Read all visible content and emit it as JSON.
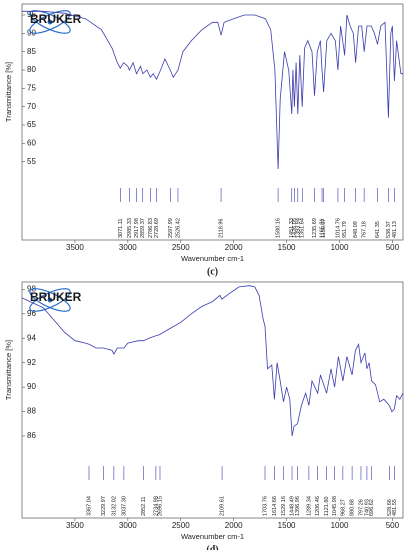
{
  "chart_data": [
    {
      "type": "line",
      "logo": "BRUKER",
      "caption": "(c)",
      "y_label": "Transmittance [%]",
      "x_label": "Wavenumber cm-1",
      "xlim": [
        4000,
        400
      ],
      "ylim": [
        50,
        98
      ],
      "xticks": [
        3500,
        3000,
        2500,
        2000,
        1500,
        1000,
        500
      ],
      "yticks": [
        55,
        60,
        65,
        70,
        75,
        80,
        85,
        90,
        95
      ],
      "color": "#3b3bb0",
      "x": [
        4000,
        3800,
        3600,
        3400,
        3250,
        3150,
        3100,
        3071,
        3040,
        3000,
        2985,
        2950,
        2918,
        2880,
        2859,
        2820,
        2787,
        2760,
        2729,
        2690,
        2650,
        2600,
        2570,
        2526,
        2480,
        2400,
        2300,
        2200,
        2150,
        2119,
        2090,
        2000,
        1900,
        1800,
        1700,
        1650,
        1610,
        1580,
        1560,
        1520,
        1480,
        1451,
        1440,
        1426,
        1410,
        1394,
        1375,
        1352,
        1330,
        1300,
        1260,
        1236,
        1210,
        1180,
        1165,
        1150,
        1120,
        1080,
        1040,
        1015,
        990,
        960,
        952,
        930,
        900,
        870,
        848,
        820,
        790,
        767,
        740,
        700,
        670,
        641,
        610,
        570,
        538,
        515,
        500,
        481,
        460,
        420,
        400
      ],
      "values": [
        96,
        96,
        95.5,
        94,
        91,
        86,
        82,
        80.5,
        82,
        81,
        80,
        82,
        79,
        81,
        79,
        80,
        78,
        79,
        77.5,
        80,
        83,
        80,
        78,
        80,
        85,
        88,
        91,
        93,
        93,
        89.5,
        93,
        94,
        95,
        95,
        94,
        91,
        80,
        53,
        72,
        85,
        80,
        68,
        80,
        70,
        82,
        68,
        84,
        70,
        86,
        88,
        85,
        73,
        85,
        88,
        80,
        74,
        88,
        90,
        88,
        80,
        92,
        86,
        84,
        95,
        92,
        90,
        82,
        92,
        92,
        85,
        92,
        92,
        90,
        87,
        92,
        93,
        67,
        90,
        92,
        77,
        88,
        79,
        79
      ],
      "peaks": [
        3071.11,
        2985.33,
        2917.98,
        2859.37,
        2786.83,
        2728.69,
        2597.99,
        2526.42,
        2118.96,
        1580.16,
        1451.33,
        1426.05,
        1393.94,
        1351.64,
        1235.69,
        1165.01,
        1150.07,
        1014.76,
        951.79,
        848.09,
        767.18,
        641.35,
        538.37,
        481.13
      ]
    },
    {
      "type": "line",
      "logo": "BRUKER",
      "caption": "(d)",
      "y_label": "Transmittance [%]",
      "x_label": "Wavenumber cm-1",
      "xlim": [
        4000,
        400
      ],
      "ylim": [
        84.2,
        98.6
      ],
      "xticks": [
        3500,
        3000,
        2500,
        2000,
        1500,
        1000,
        500
      ],
      "yticks": [
        86,
        88,
        90,
        92,
        94,
        96,
        98
      ],
      "color": "#3b3bb0",
      "x": [
        4000,
        3800,
        3700,
        3600,
        3500,
        3400,
        3367,
        3300,
        3230,
        3150,
        3132,
        3100,
        3037,
        3000,
        2900,
        2852,
        2800,
        2735,
        2700,
        2600,
        2500,
        2400,
        2300,
        2200,
        2130,
        2110,
        2050,
        1950,
        1850,
        1800,
        1760,
        1720,
        1704,
        1680,
        1640,
        1615,
        1590,
        1560,
        1529,
        1500,
        1470,
        1448,
        1430,
        1397,
        1360,
        1320,
        1289,
        1260,
        1206,
        1180,
        1122,
        1080,
        1046,
        1010,
        968,
        930,
        881,
        850,
        820,
        797,
        760,
        741,
        720,
        697,
        660,
        620,
        580,
        529,
        505,
        482,
        460,
        430,
        400
      ],
      "values": [
        97.3,
        96.5,
        95.5,
        94.5,
        93.8,
        93.6,
        93.5,
        93.2,
        93.2,
        93,
        92.7,
        93.2,
        93.2,
        93.6,
        93.8,
        93.8,
        94,
        94.2,
        94.3,
        94.8,
        95.3,
        96,
        96.6,
        97,
        97.5,
        97.2,
        97.6,
        98.2,
        98.3,
        98.2,
        97.5,
        95.5,
        95,
        91.5,
        91.8,
        89,
        92,
        90.5,
        88.8,
        90,
        89,
        86,
        86.8,
        87,
        88.5,
        89.5,
        88.5,
        90.5,
        89.5,
        91,
        89.5,
        91.5,
        90,
        92.5,
        90.5,
        92.5,
        91,
        93,
        93.5,
        92,
        92.8,
        91.5,
        92,
        90.5,
        90.2,
        88.8,
        89,
        88.5,
        88,
        88.2,
        89.3,
        89,
        89.5
      ],
      "peaks": [
        3367.04,
        3229.97,
        3132.02,
        {
          "value": 3037.3,
          "label": "3037.30"
        },
        2852.11,
        2734.98,
        2696.15,
        2109.61,
        1703.76,
        1614.66,
        1529.16,
        1448.49,
        1396.96,
        1289.34,
        1206.46,
        {
          "value": 1121.6,
          "label": "1121.60"
        },
        1045.98,
        968.27,
        880.88,
        797.26,
        740.93,
        696.62,
        528.66,
        481.55
      ]
    }
  ]
}
